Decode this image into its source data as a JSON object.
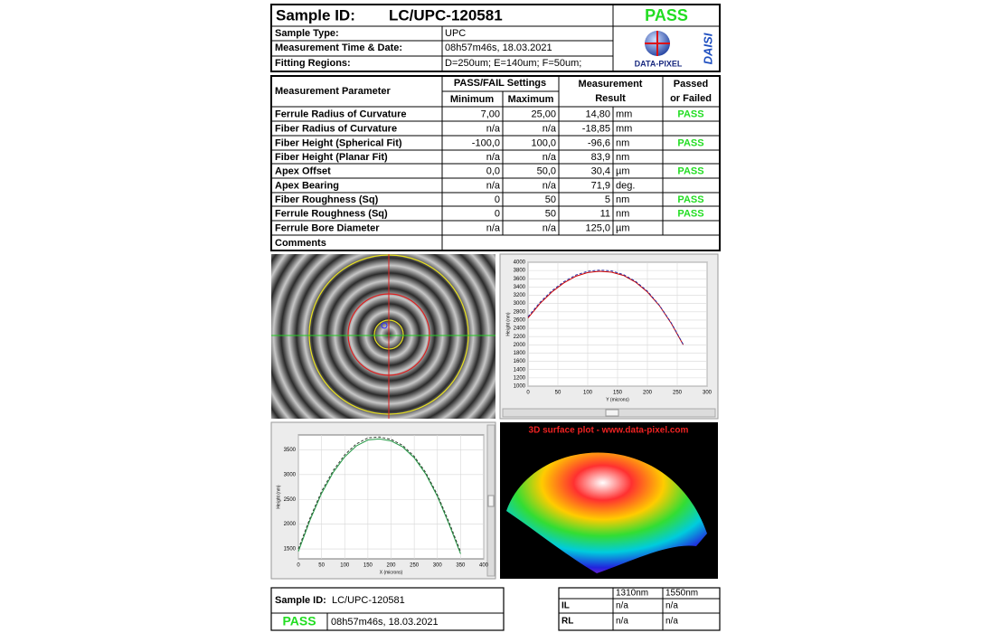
{
  "header": {
    "sample_id_label": "Sample ID:",
    "sample_id": "LC/UPC-120581",
    "status": "PASS",
    "rows": [
      [
        "Sample Type:",
        "UPC"
      ],
      [
        "Measurement Time & Date:",
        "08h57m46s, 18.03.2021"
      ],
      [
        "Fitting Regions:",
        "D=250um;   E=140um;   F=50um;"
      ]
    ],
    "logo": {
      "text": "DATA-PIXEL",
      "brand": "DAISI"
    }
  },
  "table": {
    "headers": {
      "parameter": "Measurement Parameter",
      "settings": "PASS/FAIL Settings",
      "minimum": "Minimum",
      "maximum": "Maximum",
      "result": [
        "Measurement",
        "Result"
      ],
      "passed": [
        "Passed",
        "or Failed"
      ]
    },
    "rows": [
      {
        "parameter": "Ferrule Radius of Curvature",
        "minimum": "7,00",
        "maximum": "25,00",
        "result": "14,80",
        "unit": "mm",
        "status": "PASS"
      },
      {
        "parameter": "Fiber Radius of Curvature",
        "minimum": "n/a",
        "maximum": "n/a",
        "result": "-18,85",
        "unit": "mm"
      },
      {
        "parameter": "Fiber Height (Spherical Fit)",
        "minimum": "-100,0",
        "maximum": "100,0",
        "result": "-96,6",
        "unit": "nm",
        "status": "PASS"
      },
      {
        "parameter": "Fiber Height (Planar Fit)",
        "minimum": "n/a",
        "maximum": "n/a",
        "result": "83,9",
        "unit": "nm"
      },
      {
        "parameter": "Apex Offset",
        "minimum": "0,0",
        "maximum": "50,0",
        "result": "30,4",
        "unit": "µm",
        "status": "PASS"
      },
      {
        "parameter": "Apex Bearing",
        "minimum": "n/a",
        "maximum": "n/a",
        "result": "71,9",
        "unit": "deg."
      },
      {
        "parameter": "Fiber Roughness (Sq)",
        "minimum": "0",
        "maximum": "50",
        "result": "5",
        "unit": "nm",
        "status": "PASS"
      },
      {
        "parameter": "Ferrule Roughness (Sq)",
        "minimum": "0",
        "maximum": "50",
        "result": "11",
        "unit": "nm",
        "status": "PASS"
      },
      {
        "parameter": "Ferrule Bore Diameter",
        "minimum": "n/a",
        "maximum": "n/a",
        "result": "125,0",
        "unit": "µm"
      },
      {
        "parameter": "Comments"
      }
    ]
  },
  "chart_data": [
    {
      "type": "line",
      "x_label": "Y (microns)",
      "y_label": "Height (nm)",
      "x": [
        0,
        20,
        40,
        60,
        80,
        100,
        120,
        140,
        160,
        180,
        200,
        220,
        240,
        260
      ],
      "series": [
        {
          "color": "#cc0000",
          "dash": false,
          "values": [
            2650,
            3000,
            3280,
            3500,
            3660,
            3750,
            3780,
            3760,
            3680,
            3520,
            3280,
            2950,
            2520,
            2000
          ]
        },
        {
          "color": "#3030a0",
          "dash": true,
          "values": [
            2680,
            3030,
            3310,
            3530,
            3690,
            3780,
            3810,
            3790,
            3700,
            3540,
            3300,
            2960,
            2530,
            2010
          ]
        }
      ],
      "xlim": [
        0,
        300
      ],
      "xticks": [
        0,
        50,
        100,
        150,
        200,
        250,
        300
      ],
      "ylim": [
        1000,
        4000
      ],
      "yticks": [
        1000,
        1200,
        1400,
        1600,
        1800,
        2000,
        2200,
        2400,
        2600,
        2800,
        3000,
        3200,
        3400,
        3600,
        3800,
        4000
      ],
      "grid": true
    },
    {
      "type": "line",
      "x_label": "X (microns)",
      "y_label": "Height (nm)",
      "x": [
        0,
        25,
        50,
        75,
        100,
        125,
        150,
        175,
        200,
        225,
        250,
        275,
        300,
        325,
        350
      ],
      "series": [
        {
          "color": "#229944",
          "dash": false,
          "values": [
            1450,
            2080,
            2620,
            3040,
            3360,
            3580,
            3700,
            3720,
            3680,
            3560,
            3340,
            3010,
            2560,
            2000,
            1400
          ]
        },
        {
          "color": "#304030",
          "dash": true,
          "values": [
            1500,
            2120,
            2660,
            3080,
            3400,
            3620,
            3740,
            3760,
            3710,
            3590,
            3370,
            3040,
            2590,
            2040,
            1440
          ]
        }
      ],
      "xlim": [
        0,
        400
      ],
      "xticks": [
        0,
        50,
        100,
        150,
        200,
        250,
        300,
        350,
        400
      ],
      "ylim": [
        1300,
        3800
      ],
      "yticks": [
        1500,
        2000,
        2500,
        3000,
        3500
      ],
      "grid": true
    }
  ],
  "images": {
    "surface_title": "3D surface plot - www.data-pixel.com"
  },
  "footer": {
    "sample_id_label": "Sample ID:",
    "sample_id": "LC/UPC-120581",
    "status": "PASS",
    "datetime": "08h57m46s, 18.03.2021",
    "loss_table": {
      "columns": [
        "1310nm",
        "1550nm"
      ],
      "rows": [
        {
          "label": "IL",
          "values": [
            "n/a",
            "n/a"
          ]
        },
        {
          "label": "RL",
          "values": [
            "n/a",
            "n/a"
          ]
        }
      ]
    }
  }
}
